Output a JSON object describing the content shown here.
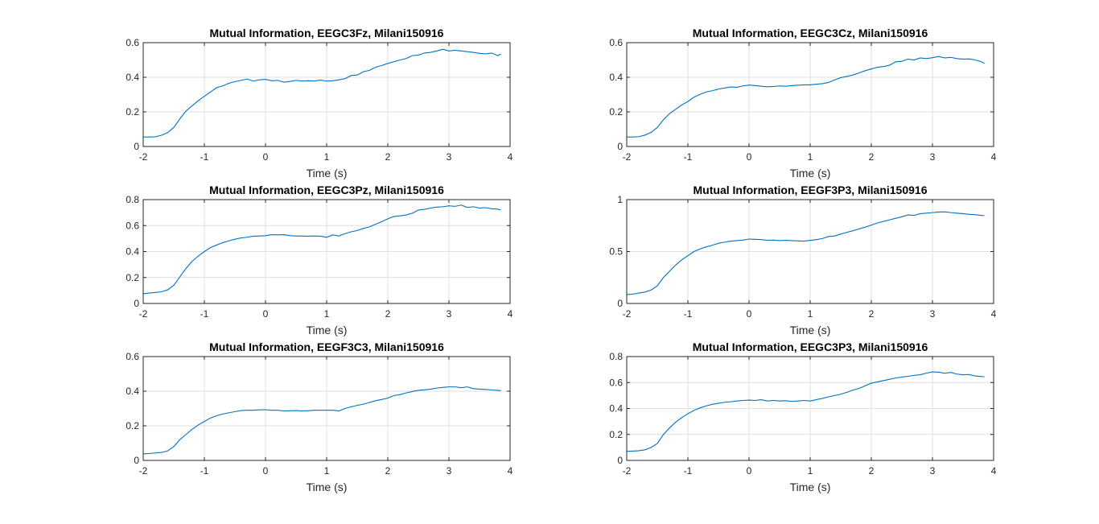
{
  "figure": {
    "background": "#ffffff",
    "line_color": "#0072bd"
  },
  "chart_data": [
    {
      "type": "line",
      "title": "Mutual Information, EEGC3Fz, Milani150916",
      "xlabel": "Time (s)",
      "ylabel": "",
      "xlim": [
        -2,
        4
      ],
      "ylim": [
        0,
        0.6
      ],
      "xticks": [
        "-2",
        "-1",
        "0",
        "1",
        "2",
        "3",
        "4"
      ],
      "yticks": [
        "0",
        "0.2",
        "0.4",
        "0.6"
      ],
      "grid": true,
      "series": [
        {
          "x": [
            -2,
            -1.9,
            -1.8,
            -1.7,
            -1.6,
            -1.5,
            -1.4,
            -1.3,
            -1.2,
            -1.1,
            -1.0,
            -0.9,
            -0.8,
            -0.7,
            -0.6,
            -0.5,
            -0.4,
            -0.3,
            -0.2,
            -0.1,
            0.0,
            0.1,
            0.2,
            0.3,
            0.4,
            0.5,
            0.6,
            0.7,
            0.8,
            0.9,
            1.0,
            1.1,
            1.2,
            1.3,
            1.4,
            1.5,
            1.6,
            1.7,
            1.8,
            1.9,
            2.0,
            2.1,
            2.2,
            2.3,
            2.4,
            2.5,
            2.6,
            2.7,
            2.8,
            2.9,
            3.0,
            3.1,
            3.2,
            3.3,
            3.4,
            3.5,
            3.6,
            3.7,
            3.8,
            3.85
          ],
          "y": [
            0.055,
            0.055,
            0.056,
            0.065,
            0.08,
            0.11,
            0.16,
            0.205,
            0.235,
            0.265,
            0.29,
            0.315,
            0.34,
            0.35,
            0.365,
            0.375,
            0.382,
            0.39,
            0.378,
            0.385,
            0.388,
            0.38,
            0.382,
            0.372,
            0.376,
            0.382,
            0.378,
            0.38,
            0.378,
            0.384,
            0.378,
            0.38,
            0.385,
            0.392,
            0.41,
            0.413,
            0.432,
            0.44,
            0.458,
            0.468,
            0.48,
            0.49,
            0.5,
            0.508,
            0.525,
            0.528,
            0.54,
            0.544,
            0.552,
            0.562,
            0.552,
            0.556,
            0.552,
            0.548,
            0.544,
            0.538,
            0.535,
            0.54,
            0.525,
            0.535
          ]
        }
      ]
    },
    {
      "type": "line",
      "title": "Mutual Information, EEGC3Cz, Milani150916",
      "xlabel": "Time (s)",
      "ylabel": "",
      "xlim": [
        -2,
        4
      ],
      "ylim": [
        0,
        0.6
      ],
      "xticks": [
        "-2",
        "-1",
        "0",
        "1",
        "2",
        "3",
        "4"
      ],
      "yticks": [
        "0",
        "0.2",
        "0.4",
        "0.6"
      ],
      "grid": true,
      "series": [
        {
          "x": [
            -2,
            -1.9,
            -1.8,
            -1.7,
            -1.6,
            -1.5,
            -1.4,
            -1.3,
            -1.2,
            -1.1,
            -1.0,
            -0.9,
            -0.8,
            -0.7,
            -0.6,
            -0.5,
            -0.4,
            -0.3,
            -0.2,
            -0.1,
            0.0,
            0.1,
            0.2,
            0.3,
            0.4,
            0.5,
            0.6,
            0.7,
            0.8,
            0.9,
            1.0,
            1.1,
            1.2,
            1.3,
            1.4,
            1.5,
            1.6,
            1.7,
            1.8,
            1.9,
            2.0,
            2.1,
            2.2,
            2.3,
            2.4,
            2.5,
            2.6,
            2.7,
            2.8,
            2.9,
            3.0,
            3.1,
            3.2,
            3.3,
            3.4,
            3.5,
            3.6,
            3.7,
            3.8,
            3.85
          ],
          "y": [
            0.055,
            0.055,
            0.057,
            0.066,
            0.082,
            0.11,
            0.155,
            0.19,
            0.215,
            0.24,
            0.26,
            0.285,
            0.302,
            0.315,
            0.322,
            0.332,
            0.338,
            0.344,
            0.342,
            0.35,
            0.355,
            0.352,
            0.348,
            0.345,
            0.347,
            0.35,
            0.348,
            0.352,
            0.354,
            0.356,
            0.356,
            0.36,
            0.363,
            0.37,
            0.385,
            0.398,
            0.405,
            0.413,
            0.425,
            0.438,
            0.448,
            0.458,
            0.462,
            0.47,
            0.49,
            0.492,
            0.505,
            0.5,
            0.512,
            0.508,
            0.513,
            0.52,
            0.512,
            0.515,
            0.508,
            0.505,
            0.506,
            0.5,
            0.49,
            0.48
          ]
        }
      ]
    },
    {
      "type": "line",
      "title": "Mutual Information, EEGC3Pz, Milani150916",
      "xlabel": "Time (s)",
      "ylabel": "",
      "xlim": [
        -2,
        4
      ],
      "ylim": [
        0,
        0.8
      ],
      "xticks": [
        "-2",
        "-1",
        "0",
        "1",
        "2",
        "3",
        "4"
      ],
      "yticks": [
        "0",
        "0.2",
        "0.4",
        "0.6",
        "0.8"
      ],
      "grid": true,
      "series": [
        {
          "x": [
            -2,
            -1.9,
            -1.8,
            -1.7,
            -1.6,
            -1.5,
            -1.4,
            -1.3,
            -1.2,
            -1.1,
            -1.0,
            -0.9,
            -0.8,
            -0.7,
            -0.6,
            -0.5,
            -0.4,
            -0.3,
            -0.2,
            -0.1,
            0.0,
            0.1,
            0.2,
            0.3,
            0.4,
            0.5,
            0.6,
            0.7,
            0.8,
            0.9,
            1.0,
            1.1,
            1.2,
            1.3,
            1.4,
            1.5,
            1.6,
            1.7,
            1.8,
            1.9,
            2.0,
            2.1,
            2.2,
            2.3,
            2.4,
            2.5,
            2.6,
            2.7,
            2.8,
            2.9,
            3.0,
            3.1,
            3.2,
            3.3,
            3.4,
            3.5,
            3.6,
            3.7,
            3.8,
            3.85
          ],
          "y": [
            0.075,
            0.08,
            0.085,
            0.09,
            0.105,
            0.14,
            0.205,
            0.27,
            0.325,
            0.365,
            0.4,
            0.43,
            0.45,
            0.468,
            0.482,
            0.495,
            0.505,
            0.51,
            0.518,
            0.52,
            0.522,
            0.53,
            0.528,
            0.53,
            0.522,
            0.52,
            0.52,
            0.518,
            0.52,
            0.518,
            0.51,
            0.528,
            0.52,
            0.538,
            0.552,
            0.562,
            0.578,
            0.59,
            0.61,
            0.63,
            0.652,
            0.67,
            0.675,
            0.682,
            0.695,
            0.72,
            0.725,
            0.735,
            0.742,
            0.745,
            0.752,
            0.748,
            0.758,
            0.74,
            0.745,
            0.735,
            0.738,
            0.73,
            0.726,
            0.72
          ]
        }
      ]
    },
    {
      "type": "line",
      "title": "Mutual Information, EEGF3P3, Milani150916",
      "xlabel": "Time (s)",
      "ylabel": "",
      "xlim": [
        -2,
        4
      ],
      "ylim": [
        0,
        1
      ],
      "xticks": [
        "-2",
        "-1",
        "0",
        "1",
        "2",
        "3",
        "4"
      ],
      "yticks": [
        "0",
        "0.5",
        "1"
      ],
      "grid": true,
      "series": [
        {
          "x": [
            -2,
            -1.9,
            -1.8,
            -1.7,
            -1.6,
            -1.5,
            -1.4,
            -1.3,
            -1.2,
            -1.1,
            -1.0,
            -0.9,
            -0.8,
            -0.7,
            -0.6,
            -0.5,
            -0.4,
            -0.3,
            -0.2,
            -0.1,
            0.0,
            0.1,
            0.2,
            0.3,
            0.4,
            0.5,
            0.6,
            0.7,
            0.8,
            0.9,
            1.0,
            1.1,
            1.2,
            1.3,
            1.4,
            1.5,
            1.6,
            1.7,
            1.8,
            1.9,
            2.0,
            2.1,
            2.2,
            2.3,
            2.4,
            2.5,
            2.6,
            2.7,
            2.8,
            2.9,
            3.0,
            3.1,
            3.2,
            3.3,
            3.4,
            3.5,
            3.6,
            3.7,
            3.8,
            3.85
          ],
          "y": [
            0.085,
            0.09,
            0.1,
            0.11,
            0.13,
            0.17,
            0.25,
            0.31,
            0.37,
            0.42,
            0.46,
            0.5,
            0.525,
            0.545,
            0.56,
            0.58,
            0.59,
            0.6,
            0.605,
            0.61,
            0.62,
            0.618,
            0.615,
            0.608,
            0.61,
            0.605,
            0.608,
            0.605,
            0.602,
            0.6,
            0.608,
            0.615,
            0.625,
            0.645,
            0.65,
            0.668,
            0.685,
            0.7,
            0.718,
            0.735,
            0.755,
            0.775,
            0.79,
            0.805,
            0.82,
            0.835,
            0.852,
            0.848,
            0.865,
            0.87,
            0.875,
            0.88,
            0.882,
            0.875,
            0.87,
            0.865,
            0.858,
            0.855,
            0.848,
            0.845
          ]
        }
      ]
    },
    {
      "type": "line",
      "title": "Mutual Information, EEGF3C3, Milani150916",
      "xlabel": "Time (s)",
      "ylabel": "",
      "xlim": [
        -2,
        4
      ],
      "ylim": [
        0,
        0.6
      ],
      "xticks": [
        "-2",
        "-1",
        "0",
        "1",
        "2",
        "3",
        "4"
      ],
      "yticks": [
        "0",
        "0.2",
        "0.4",
        "0.6"
      ],
      "grid": true,
      "series": [
        {
          "x": [
            -2,
            -1.9,
            -1.8,
            -1.7,
            -1.6,
            -1.5,
            -1.4,
            -1.3,
            -1.2,
            -1.1,
            -1.0,
            -0.9,
            -0.8,
            -0.7,
            -0.6,
            -0.5,
            -0.4,
            -0.3,
            -0.2,
            -0.1,
            0.0,
            0.1,
            0.2,
            0.3,
            0.4,
            0.5,
            0.6,
            0.7,
            0.8,
            0.9,
            1.0,
            1.1,
            1.2,
            1.3,
            1.4,
            1.5,
            1.6,
            1.7,
            1.8,
            1.9,
            2.0,
            2.1,
            2.2,
            2.3,
            2.4,
            2.5,
            2.6,
            2.7,
            2.8,
            2.9,
            3.0,
            3.1,
            3.2,
            3.3,
            3.4,
            3.5,
            3.6,
            3.7,
            3.8,
            3.85
          ],
          "y": [
            0.038,
            0.04,
            0.043,
            0.046,
            0.055,
            0.08,
            0.12,
            0.15,
            0.18,
            0.205,
            0.225,
            0.245,
            0.258,
            0.268,
            0.275,
            0.282,
            0.288,
            0.29,
            0.29,
            0.292,
            0.293,
            0.29,
            0.29,
            0.286,
            0.287,
            0.288,
            0.286,
            0.287,
            0.29,
            0.29,
            0.29,
            0.29,
            0.286,
            0.3,
            0.31,
            0.318,
            0.325,
            0.335,
            0.345,
            0.352,
            0.36,
            0.375,
            0.38,
            0.39,
            0.398,
            0.405,
            0.408,
            0.412,
            0.418,
            0.422,
            0.425,
            0.425,
            0.42,
            0.425,
            0.415,
            0.412,
            0.41,
            0.407,
            0.405,
            0.403
          ]
        }
      ]
    },
    {
      "type": "line",
      "title": "Mutual Information, EEGC3P3, Milani150916",
      "xlabel": "Time (s)",
      "ylabel": "",
      "xlim": [
        -2,
        4
      ],
      "ylim": [
        0,
        0.8
      ],
      "xticks": [
        "-2",
        "-1",
        "0",
        "1",
        "2",
        "3",
        "4"
      ],
      "yticks": [
        "0",
        "0.2",
        "0.4",
        "0.6",
        "0.8"
      ],
      "grid": true,
      "series": [
        {
          "x": [
            -2,
            -1.9,
            -1.8,
            -1.7,
            -1.6,
            -1.5,
            -1.4,
            -1.3,
            -1.2,
            -1.1,
            -1.0,
            -0.9,
            -0.8,
            -0.7,
            -0.6,
            -0.5,
            -0.4,
            -0.3,
            -0.2,
            -0.1,
            0.0,
            0.1,
            0.2,
            0.3,
            0.4,
            0.5,
            0.6,
            0.7,
            0.8,
            0.9,
            1.0,
            1.1,
            1.2,
            1.3,
            1.4,
            1.5,
            1.6,
            1.7,
            1.8,
            1.9,
            2.0,
            2.1,
            2.2,
            2.3,
            2.4,
            2.5,
            2.6,
            2.7,
            2.8,
            2.9,
            3.0,
            3.1,
            3.2,
            3.3,
            3.4,
            3.5,
            3.6,
            3.7,
            3.8,
            3.85
          ],
          "y": [
            0.07,
            0.072,
            0.075,
            0.082,
            0.1,
            0.13,
            0.2,
            0.25,
            0.295,
            0.33,
            0.36,
            0.385,
            0.405,
            0.42,
            0.432,
            0.44,
            0.448,
            0.452,
            0.458,
            0.462,
            0.465,
            0.462,
            0.468,
            0.458,
            0.462,
            0.458,
            0.46,
            0.455,
            0.458,
            0.462,
            0.458,
            0.468,
            0.478,
            0.49,
            0.5,
            0.51,
            0.525,
            0.542,
            0.555,
            0.575,
            0.595,
            0.605,
            0.615,
            0.625,
            0.635,
            0.642,
            0.648,
            0.655,
            0.66,
            0.672,
            0.682,
            0.68,
            0.672,
            0.678,
            0.665,
            0.66,
            0.662,
            0.65,
            0.646,
            0.645
          ]
        }
      ]
    }
  ]
}
